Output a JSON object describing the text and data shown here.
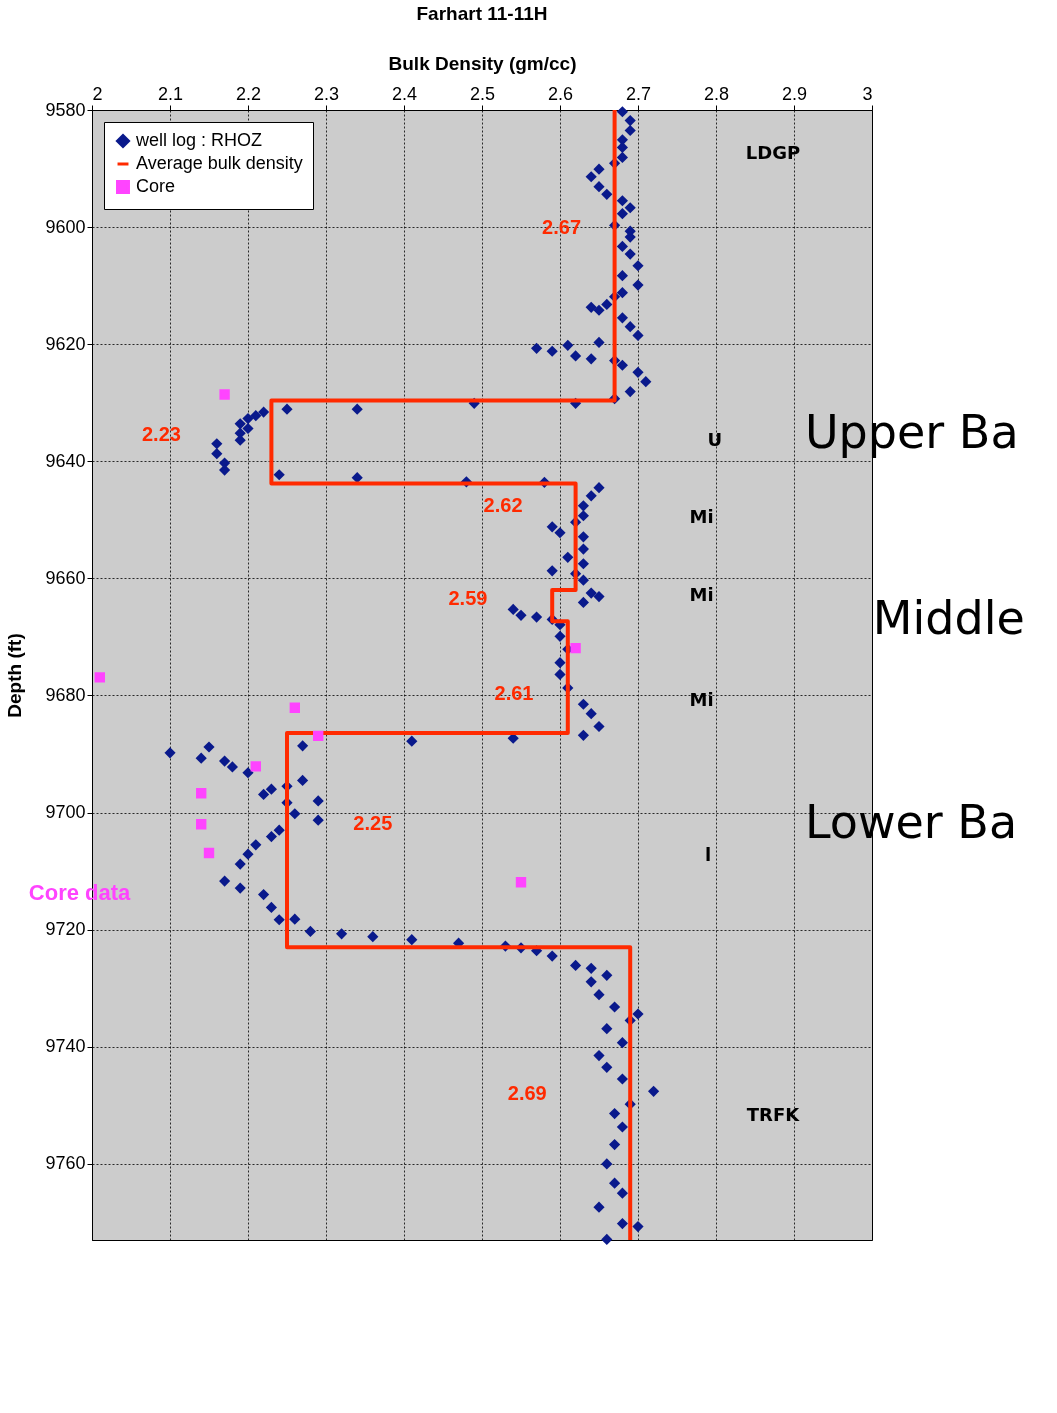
{
  "chart_data": {
    "type": "scatter",
    "title": "Farhart 11-11H",
    "xlabel": "Bulk Density (gm/cc)",
    "ylabel": "Depth (ft)",
    "xlim": [
      2,
      3
    ],
    "xticks": [
      2,
      2.1,
      2.2,
      2.3,
      2.4,
      2.5,
      2.6,
      2.7,
      2.8,
      2.9,
      3
    ],
    "ylim": [
      9773,
      9580
    ],
    "yticks": [
      9580,
      9600,
      9620,
      9640,
      9660,
      9680,
      9700,
      9720,
      9740,
      9760
    ],
    "grid": true,
    "legend": "top left",
    "series": [
      {
        "name": "well log : RHOZ",
        "type": "scatter",
        "marker": "diamond",
        "color": "#0a1a8c",
        "x": [
          2.68,
          2.69,
          2.69,
          2.68,
          2.68,
          2.68,
          2.67,
          2.65,
          2.64,
          2.65,
          2.66,
          2.68,
          2.69,
          2.68,
          2.67,
          2.69,
          2.69,
          2.68,
          2.69,
          2.7,
          2.68,
          2.7,
          2.68,
          2.67,
          2.66,
          2.64,
          2.65,
          2.68,
          2.69,
          2.7,
          2.65,
          2.57,
          2.59,
          2.61,
          2.62,
          2.64,
          2.67,
          2.68,
          2.7,
          2.71,
          2.69,
          2.67,
          2.62,
          2.49,
          2.34,
          2.25,
          2.22,
          2.21,
          2.2,
          2.19,
          2.2,
          2.19,
          2.19,
          2.16,
          2.16,
          2.17,
          2.17,
          2.24,
          2.34,
          2.48,
          2.58,
          2.65,
          2.64,
          2.63,
          2.63,
          2.62,
          2.59,
          2.6,
          2.63,
          2.63,
          2.61,
          2.63,
          2.59,
          2.62,
          2.63,
          2.64,
          2.65,
          2.63,
          2.54,
          2.55,
          2.57,
          2.59,
          2.6,
          2.6,
          2.61,
          2.6,
          2.6,
          2.61,
          2.63,
          2.64,
          2.65,
          2.63,
          2.54,
          2.41,
          2.27,
          2.15,
          2.1,
          2.14,
          2.17,
          2.18,
          2.2,
          2.23,
          2.22,
          2.25,
          2.27,
          2.25,
          2.29,
          2.26,
          2.29,
          2.24,
          2.23,
          2.21,
          2.2,
          2.19,
          2.17,
          2.19,
          2.22,
          2.23,
          2.24,
          2.26,
          2.28,
          2.32,
          2.36,
          2.41,
          2.47,
          2.53,
          2.55,
          2.57,
          2.59,
          2.62,
          2.64,
          2.66,
          2.64,
          2.65,
          2.67,
          2.7,
          2.69,
          2.66,
          2.68,
          2.65,
          2.66,
          2.68,
          2.72,
          2.69,
          2.67,
          2.68,
          2.67,
          2.66,
          2.67,
          2.68,
          2.65,
          2.68,
          2.7,
          2.66
        ],
        "values": [
          9580.3,
          9581.8,
          9583.5,
          9585.1,
          9586.4,
          9588.1,
          9589.1,
          9590.1,
          9591.4,
          9593.1,
          9594.4,
          9595.5,
          9596.7,
          9597.7,
          9599.7,
          9600.7,
          9601.7,
          9603.3,
          9604.6,
          9606.6,
          9608.3,
          9609.9,
          9611.2,
          9611.9,
          9613.2,
          9613.7,
          9614.2,
          9615.5,
          9617.0,
          9618.5,
          9619.7,
          9620.7,
          9621.2,
          9620.2,
          9622.0,
          9622.5,
          9622.8,
          9623.6,
          9624.8,
          9626.4,
          9628.1,
          9629.3,
          9630.1,
          9630.1,
          9631.1,
          9631.1,
          9631.6,
          9632.2,
          9632.7,
          9633.6,
          9634.4,
          9635.2,
          9636.4,
          9637.0,
          9638.7,
          9640.3,
          9641.5,
          9642.3,
          9642.8,
          9643.5,
          9643.6,
          9644.5,
          9645.9,
          9647.6,
          9649.3,
          9650.4,
          9651.2,
          9652.2,
          9652.9,
          9655.0,
          9656.4,
          9657.5,
          9658.7,
          9659.2,
          9660.3,
          9662.5,
          9663.1,
          9664.1,
          9665.3,
          9666.3,
          9666.6,
          9667.0,
          9667.9,
          9669.9,
          9672.1,
          9674.4,
          9676.4,
          9678.7,
          9681.5,
          9683.1,
          9685.3,
          9686.8,
          9687.3,
          9687.8,
          9688.6,
          9688.8,
          9689.8,
          9690.7,
          9691.2,
          9692.2,
          9693.2,
          9696.0,
          9696.9,
          9695.5,
          9694.5,
          9698.3,
          9698.0,
          9700.2,
          9701.3,
          9703.0,
          9704.1,
          9705.5,
          9707.1,
          9708.8,
          9711.7,
          9712.9,
          9714.0,
          9716.2,
          9718.3,
          9718.2,
          9720.3,
          9720.7,
          9721.2,
          9721.7,
          9722.3,
          9722.8,
          9723.1,
          9723.6,
          9724.5,
          9726.1,
          9726.6,
          9727.8,
          9728.9,
          9731.1,
          9733.2,
          9734.4,
          9735.5,
          9736.9,
          9739.3,
          9741.5,
          9743.5,
          9745.5,
          9747.6,
          9749.8,
          9751.4,
          9753.7,
          9756.7,
          9760.0,
          9763.3,
          9765.0,
          9767.4,
          9770.2,
          9770.7,
          9772.9
        ]
      },
      {
        "name": "Average bulk density",
        "type": "line",
        "color": "#ff2a00",
        "x": [
          2.67,
          2.67,
          2.23,
          2.23,
          2.62,
          2.62,
          2.59,
          2.59,
          2.61,
          2.61,
          2.25,
          2.25,
          2.69,
          2.69
        ],
        "values": [
          9580,
          9629.6,
          9629.6,
          9643.8,
          9643.8,
          9662,
          9662,
          9667.3,
          9667.3,
          9686.4,
          9686.4,
          9723,
          9723,
          9773
        ]
      },
      {
        "name": "Core",
        "type": "scatter",
        "marker": "square",
        "color": "#ff44ff",
        "x": [
          2.17,
          2.01,
          2.26,
          2.29,
          2.21,
          2.14,
          2.14,
          2.15,
          2.55,
          2.62
        ],
        "values": [
          9628.6,
          9676.9,
          9682.1,
          9686.9,
          9692.1,
          9696.7,
          9702.0,
          9706.9,
          9711.9,
          9671.9
        ]
      }
    ],
    "annotations": [
      "2.67",
      "2.23",
      "2.62",
      "2.59",
      "2.61",
      "2.25",
      "2.69",
      "LDGP",
      "U",
      "Mi",
      "Mi",
      "Mi",
      "l",
      "TRFK",
      "Upper Ba",
      "Middle",
      "Lower Ba",
      "Core data"
    ]
  }
}
